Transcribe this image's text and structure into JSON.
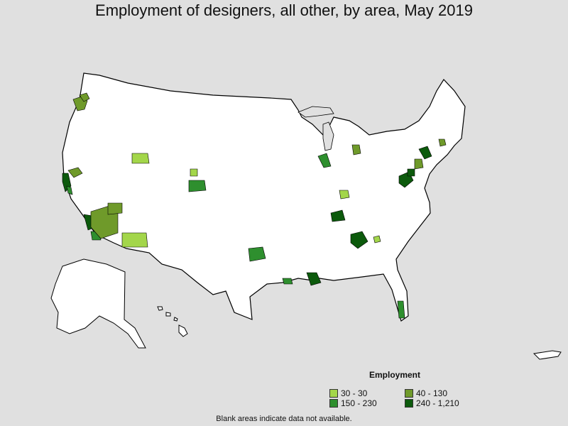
{
  "title": "Employment of designers, all other, by area, May 2019",
  "legend": {
    "title": "Employment",
    "items": [
      {
        "label": "30 - 30",
        "color": "#a3d64a"
      },
      {
        "label": "40 - 130",
        "color": "#6f9a2a"
      },
      {
        "label": "150 - 230",
        "color": "#2e8f2e"
      },
      {
        "label": "240 - 1,210",
        "color": "#0c5a0c"
      }
    ]
  },
  "colors": {
    "background": "#e0e0e0",
    "land": "#ffffff",
    "border": "#000000"
  },
  "note": "Blank areas indicate data not available."
}
